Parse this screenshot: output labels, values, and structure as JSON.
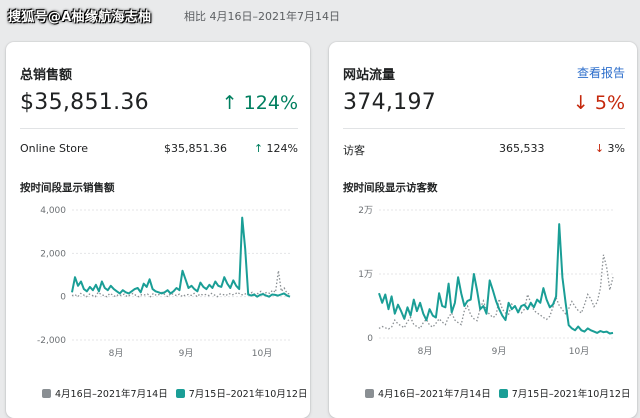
{
  "watermark": "搜狐号@A柚缘航海志柚",
  "compare_text": "相比 4月16日–2021年7月14日",
  "colors": {
    "primary": "#1a9e96",
    "previous": "#8a8f93",
    "up": "#007f5f",
    "down": "#c5280c",
    "link": "#2c6ecb"
  },
  "sales": {
    "title": "总销售额",
    "total": "$35,851.36",
    "change": "↑ 124%",
    "row": {
      "label": "Online Store",
      "value": "$35,851.36",
      "arrow": "↑",
      "pct": "124%"
    },
    "subtitle": "按时间段显示销售额",
    "chart_data": {
      "type": "line",
      "y_ticks": [
        "4,000",
        "2,000",
        "0",
        "-2,000"
      ],
      "ylim": [
        -2000,
        4000
      ],
      "x_ticks": [
        "8月",
        "9月",
        "10月"
      ],
      "series": [
        {
          "name": "4月16日–2021年7月14日",
          "style": "dotted",
          "values": [
            50,
            100,
            0,
            150,
            80,
            0,
            120,
            60,
            0,
            200,
            100,
            50,
            0,
            150,
            80,
            0,
            100,
            50,
            120,
            0,
            80,
            150,
            60,
            0,
            100,
            80,
            120,
            0,
            150,
            60,
            100,
            200,
            80,
            0,
            150,
            100,
            50,
            120,
            0,
            80,
            100,
            60,
            150,
            0,
            120,
            80,
            100,
            50,
            150,
            80,
            0,
            120,
            100,
            60,
            150,
            80,
            120,
            200,
            100,
            80,
            150,
            120,
            200,
            100,
            150,
            250,
            120,
            200,
            150,
            300,
            200,
            1200,
            250,
            400,
            150,
            120
          ]
        },
        {
          "name": "7月15日–2021年10月12日",
          "style": "solid",
          "values": [
            200,
            900,
            500,
            700,
            350,
            250,
            450,
            300,
            550,
            250,
            700,
            400,
            300,
            500,
            350,
            250,
            150,
            300,
            200,
            150,
            250,
            350,
            400,
            200,
            600,
            450,
            800,
            350,
            250,
            200,
            150,
            200,
            300,
            150,
            250,
            400,
            300,
            1200,
            800,
            400,
            500,
            350,
            250,
            650,
            450,
            350,
            550,
            400,
            700,
            500,
            450,
            900,
            600,
            400,
            750,
            500,
            350,
            3650,
            2200,
            100,
            50,
            100,
            0,
            80,
            120,
            50,
            0,
            100,
            80,
            50,
            100,
            150,
            50,
            0
          ]
        }
      ]
    },
    "legend": [
      {
        "label": "4月16日–2021年7月14日",
        "color": "#8a8f93"
      },
      {
        "label": "7月15日–2021年10月12日",
        "color": "#1a9e96"
      }
    ]
  },
  "traffic": {
    "title": "网站流量",
    "link": "查看报告",
    "total": "374,197",
    "change": "↓ 5%",
    "row": {
      "label": "访客",
      "value": "365,533",
      "arrow": "↓",
      "pct": "3%"
    },
    "subtitle": "按时间段显示访客数",
    "chart_data": {
      "type": "line",
      "y_ticks": [
        "2万",
        "1万",
        "0"
      ],
      "ylim": [
        0,
        20000
      ],
      "x_ticks": [
        "8月",
        "9月",
        "10月"
      ],
      "series": [
        {
          "name": "4月16日–2021年7月14日",
          "style": "dotted",
          "values": [
            1500,
            1800,
            1600,
            1400,
            1700,
            2800,
            2200,
            1900,
            1600,
            2600,
            3200,
            2100,
            1800,
            1500,
            2400,
            2900,
            2000,
            1700,
            2300,
            3000,
            2500,
            2100,
            3300,
            3900,
            2800,
            2400,
            2100,
            4300,
            5000,
            3600,
            3000,
            2700,
            4600,
            5800,
            4200,
            3700,
            3200,
            3500,
            6100,
            4500,
            3900,
            3700,
            5300,
            4800,
            4100,
            3900,
            4500,
            6800,
            5500,
            4300,
            3900,
            3600,
            3200,
            2900,
            3400,
            4800,
            6300,
            5100,
            4400,
            3800,
            4600,
            5700,
            4900,
            4300,
            3900,
            5200,
            6800,
            6100,
            4900,
            5600,
            7800,
            13000,
            11000,
            7500,
            9500
          ]
        },
        {
          "name": "7月15日–2021年10月12日",
          "style": "solid",
          "values": [
            7000,
            5500,
            6800,
            4500,
            6500,
            3800,
            5200,
            4200,
            3000,
            4800,
            3500,
            6000,
            4200,
            5500,
            3800,
            2800,
            4500,
            3500,
            3200,
            7000,
            5000,
            4800,
            8500,
            4000,
            5500,
            9500,
            7000,
            5000,
            5800,
            6000,
            10000,
            7500,
            4500,
            5000,
            3800,
            9000,
            7500,
            5800,
            4500,
            3500,
            2800,
            5500,
            4500,
            5000,
            4000,
            5000,
            5200,
            4500,
            5500,
            4800,
            6000,
            5500,
            7800,
            6000,
            4800,
            5200,
            6500,
            17800,
            9500,
            5500,
            2000,
            1500,
            1200,
            1800,
            1200,
            1000,
            1500,
            1200,
            1000,
            800,
            1100,
            900,
            1000,
            700,
            800
          ]
        }
      ]
    },
    "legend": [
      {
        "label": "4月16日–2021年7月14日",
        "color": "#8a8f93"
      },
      {
        "label": "7月15日–2021年10月12日",
        "color": "#1a9e96"
      }
    ]
  }
}
